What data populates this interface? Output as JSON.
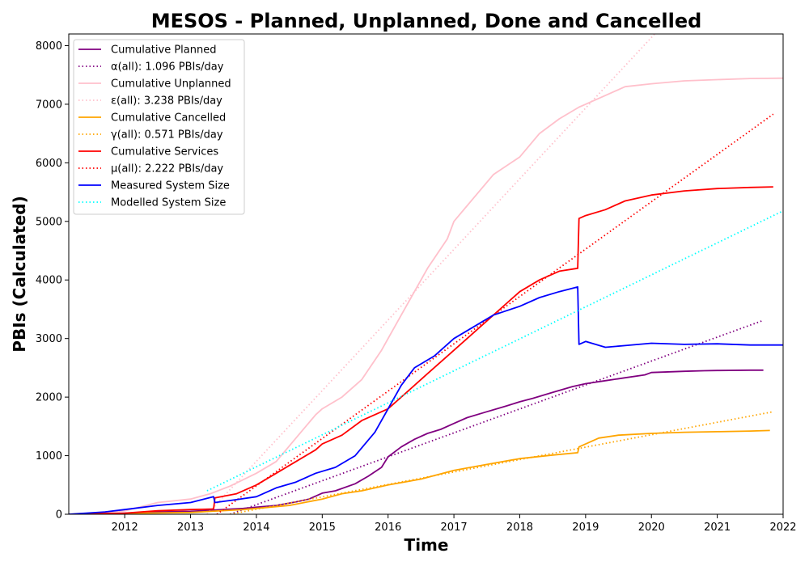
{
  "chart_data": {
    "type": "line",
    "title": "MESOS - Planned, Unplanned, Done  and Cancelled",
    "xlabel": "Time",
    "ylabel": "PBIs (Calculated)",
    "xlim": [
      2011.15,
      2022.0
    ],
    "ylim": [
      0,
      8200
    ],
    "x_ticks": [
      2012,
      2013,
      2014,
      2015,
      2016,
      2017,
      2018,
      2019,
      2020,
      2021,
      2022
    ],
    "y_ticks": [
      0,
      1000,
      2000,
      3000,
      4000,
      5000,
      6000,
      7000,
      8000
    ],
    "grid": false,
    "legend_position": "top-left",
    "series": [
      {
        "name": "Cumulative Planned",
        "color": "#800080",
        "style": "solid",
        "points": [
          [
            2011.15,
            0
          ],
          [
            2011.5,
            5
          ],
          [
            2012.0,
            20
          ],
          [
            2012.5,
            40
          ],
          [
            2013.0,
            50
          ],
          [
            2013.5,
            80
          ],
          [
            2013.8,
            100
          ],
          [
            2014.0,
            120
          ],
          [
            2014.3,
            150
          ],
          [
            2014.6,
            210
          ],
          [
            2014.8,
            260
          ],
          [
            2015.0,
            360
          ],
          [
            2015.2,
            400
          ],
          [
            2015.5,
            520
          ],
          [
            2015.7,
            650
          ],
          [
            2015.9,
            800
          ],
          [
            2016.0,
            980
          ],
          [
            2016.2,
            1150
          ],
          [
            2016.4,
            1280
          ],
          [
            2016.6,
            1380
          ],
          [
            2016.8,
            1450
          ],
          [
            2017.0,
            1550
          ],
          [
            2017.2,
            1650
          ],
          [
            2017.5,
            1750
          ],
          [
            2017.8,
            1850
          ],
          [
            2018.0,
            1920
          ],
          [
            2018.2,
            1980
          ],
          [
            2018.5,
            2080
          ],
          [
            2018.8,
            2180
          ],
          [
            2019.0,
            2230
          ],
          [
            2019.3,
            2280
          ],
          [
            2019.6,
            2330
          ],
          [
            2019.9,
            2380
          ],
          [
            2020.0,
            2420
          ],
          [
            2020.5,
            2440
          ],
          [
            2020.8,
            2450
          ],
          [
            2021.0,
            2455
          ],
          [
            2021.5,
            2460
          ],
          [
            2021.7,
            2460
          ]
        ]
      },
      {
        "name": "α(all): 1.096 PBIs/day",
        "color": "#800080",
        "style": "dotted",
        "points": [
          [
            2013.6,
            0
          ],
          [
            2021.7,
            3310
          ]
        ]
      },
      {
        "name": "Cumulative Unplanned",
        "color": "#ffc0cb",
        "style": "solid",
        "points": [
          [
            2011.15,
            0
          ],
          [
            2011.5,
            10
          ],
          [
            2012.0,
            60
          ],
          [
            2012.5,
            200
          ],
          [
            2013.0,
            260
          ],
          [
            2013.3,
            350
          ],
          [
            2013.6,
            480
          ],
          [
            2014.0,
            700
          ],
          [
            2014.3,
            900
          ],
          [
            2014.6,
            1300
          ],
          [
            2014.9,
            1700
          ],
          [
            2015.0,
            1800
          ],
          [
            2015.3,
            2000
          ],
          [
            2015.6,
            2300
          ],
          [
            2015.9,
            2800
          ],
          [
            2016.0,
            3000
          ],
          [
            2016.3,
            3600
          ],
          [
            2016.6,
            4200
          ],
          [
            2016.9,
            4700
          ],
          [
            2017.0,
            5000
          ],
          [
            2017.3,
            5400
          ],
          [
            2017.6,
            5800
          ],
          [
            2018.0,
            6100
          ],
          [
            2018.3,
            6500
          ],
          [
            2018.6,
            6750
          ],
          [
            2018.9,
            6950
          ],
          [
            2019.0,
            7000
          ],
          [
            2019.3,
            7150
          ],
          [
            2019.6,
            7300
          ],
          [
            2020.0,
            7350
          ],
          [
            2020.5,
            7400
          ],
          [
            2021.0,
            7420
          ],
          [
            2021.5,
            7440
          ],
          [
            2022.0,
            7445
          ]
        ]
      },
      {
        "name": "ε(all): 3.238 PBIs/day",
        "color": "#ffc0cb",
        "style": "dotted",
        "points": [
          [
            2013.25,
            0
          ],
          [
            2020.05,
            8200
          ]
        ]
      },
      {
        "name": "Cumulative Cancelled",
        "color": "#ffa500",
        "style": "solid",
        "points": [
          [
            2011.15,
            0
          ],
          [
            2012.0,
            15
          ],
          [
            2013.0,
            30
          ],
          [
            2013.8,
            80
          ],
          [
            2014.0,
            100
          ],
          [
            2014.5,
            150
          ],
          [
            2015.0,
            260
          ],
          [
            2015.3,
            350
          ],
          [
            2015.6,
            400
          ],
          [
            2016.0,
            500
          ],
          [
            2016.5,
            600
          ],
          [
            2017.0,
            750
          ],
          [
            2017.5,
            850
          ],
          [
            2018.0,
            950
          ],
          [
            2018.5,
            1010
          ],
          [
            2018.88,
            1050
          ],
          [
            2018.9,
            1150
          ],
          [
            2019.0,
            1200
          ],
          [
            2019.2,
            1300
          ],
          [
            2019.5,
            1350
          ],
          [
            2020.0,
            1380
          ],
          [
            2020.5,
            1400
          ],
          [
            2021.0,
            1410
          ],
          [
            2021.5,
            1420
          ],
          [
            2021.8,
            1430
          ]
        ]
      },
      {
        "name": "γ(all): 0.571 PBIs/day",
        "color": "#ffa500",
        "style": "dotted",
        "points": [
          [
            2013.6,
            0
          ],
          [
            2021.85,
            1750
          ]
        ]
      },
      {
        "name": "Cumulative Services",
        "color": "#ff0000",
        "style": "solid",
        "points": [
          [
            2011.15,
            0
          ],
          [
            2012.0,
            20
          ],
          [
            2012.5,
            60
          ],
          [
            2013.0,
            80
          ],
          [
            2013.35,
            90
          ],
          [
            2013.37,
            280
          ],
          [
            2013.7,
            350
          ],
          [
            2014.0,
            500
          ],
          [
            2014.3,
            700
          ],
          [
            2014.6,
            900
          ],
          [
            2014.9,
            1100
          ],
          [
            2015.0,
            1200
          ],
          [
            2015.3,
            1350
          ],
          [
            2015.6,
            1600
          ],
          [
            2016.0,
            1800
          ],
          [
            2016.3,
            2100
          ],
          [
            2016.6,
            2400
          ],
          [
            2017.0,
            2800
          ],
          [
            2017.3,
            3100
          ],
          [
            2017.6,
            3400
          ],
          [
            2018.0,
            3800
          ],
          [
            2018.3,
            4000
          ],
          [
            2018.6,
            4150
          ],
          [
            2018.88,
            4200
          ],
          [
            2018.9,
            5050
          ],
          [
            2019.0,
            5100
          ],
          [
            2019.3,
            5200
          ],
          [
            2019.6,
            5350
          ],
          [
            2020.0,
            5450
          ],
          [
            2020.5,
            5520
          ],
          [
            2021.0,
            5560
          ],
          [
            2021.5,
            5580
          ],
          [
            2021.85,
            5590
          ]
        ]
      },
      {
        "name": "μ(all): 2.222 PBIs/day",
        "color": "#ff0000",
        "style": "dotted",
        "points": [
          [
            2013.4,
            0
          ],
          [
            2021.85,
            6830
          ]
        ]
      },
      {
        "name": "Measured System Size",
        "color": "#0000ff",
        "style": "solid",
        "points": [
          [
            2011.15,
            0
          ],
          [
            2011.7,
            40
          ],
          [
            2012.0,
            80
          ],
          [
            2012.5,
            150
          ],
          [
            2013.0,
            200
          ],
          [
            2013.35,
            300
          ],
          [
            2013.37,
            200
          ],
          [
            2013.7,
            250
          ],
          [
            2014.0,
            300
          ],
          [
            2014.3,
            450
          ],
          [
            2014.6,
            550
          ],
          [
            2014.9,
            700
          ],
          [
            2015.2,
            800
          ],
          [
            2015.5,
            1000
          ],
          [
            2015.8,
            1400
          ],
          [
            2016.0,
            1800
          ],
          [
            2016.2,
            2200
          ],
          [
            2016.4,
            2500
          ],
          [
            2016.7,
            2700
          ],
          [
            2017.0,
            3000
          ],
          [
            2017.3,
            3200
          ],
          [
            2017.6,
            3400
          ],
          [
            2018.0,
            3550
          ],
          [
            2018.3,
            3700
          ],
          [
            2018.6,
            3800
          ],
          [
            2018.88,
            3880
          ],
          [
            2018.9,
            2900
          ],
          [
            2019.0,
            2950
          ],
          [
            2019.3,
            2850
          ],
          [
            2019.6,
            2880
          ],
          [
            2020.0,
            2920
          ],
          [
            2020.5,
            2900
          ],
          [
            2021.0,
            2910
          ],
          [
            2021.5,
            2890
          ],
          [
            2022.0,
            2890
          ]
        ]
      },
      {
        "name": "Modelled System Size",
        "color": "#00ffff",
        "style": "dotted",
        "points": [
          [
            2013.25,
            400
          ],
          [
            2022.0,
            5180
          ]
        ]
      }
    ]
  }
}
